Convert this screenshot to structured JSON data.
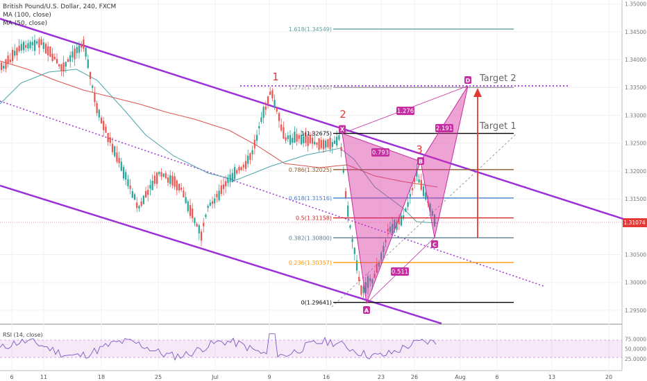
{
  "chart_data": {
    "type": "candlestick",
    "title": "British Pound/U.S. Dollar, 240, FXCM",
    "indicators": [
      "MA (100, close)",
      "MA (50, close)"
    ],
    "last_price": "1.31074",
    "y_ticks": [
      "1.35000",
      "1.34500",
      "1.34000",
      "1.33500",
      "1.33000",
      "1.32500",
      "1.32000",
      "1.31500",
      "1.30500",
      "1.30000",
      "1.29500"
    ],
    "x_ticks": [
      "6",
      "11",
      "18",
      "25",
      "Jul",
      "9",
      "16",
      "23",
      "26",
      "Aug",
      "6",
      "13",
      "20"
    ],
    "fib_levels": [
      {
        "label": "1.618(1.34549)",
        "value": 1.34549,
        "color": "#5f9ea0"
      },
      {
        "label": "1.272(1.33500)",
        "value": 1.335,
        "color": "#a0a0a0"
      },
      {
        "label": "1(1.32675)",
        "value": 1.32675,
        "color": "#000000"
      },
      {
        "label": "0.786(1.32025)",
        "value": 1.32025,
        "color": "#8b5a2b"
      },
      {
        "label": "0.618(1.31516)",
        "value": 1.31516,
        "color": "#4a7fd4"
      },
      {
        "label": "0.5(1.31158)",
        "value": 1.31158,
        "color": "#d22222"
      },
      {
        "label": "0.382(1.30800)",
        "value": 1.308,
        "color": "#607d8b"
      },
      {
        "label": "0.236(1.30357)",
        "value": 1.30357,
        "color": "#ff9800"
      },
      {
        "label": "0(1.29641)",
        "value": 1.29641,
        "color": "#000000"
      }
    ],
    "harmonic_points": [
      {
        "name": "X",
        "value": 1.32675
      },
      {
        "name": "A",
        "value": 1.29641
      },
      {
        "name": "B",
        "value": 1.3205
      },
      {
        "name": "C",
        "value": 1.3085
      },
      {
        "name": "D",
        "value": 1.335
      }
    ],
    "ratios": [
      "1.276",
      "0.793",
      "2.191",
      "0.511"
    ],
    "wave_labels": [
      "1",
      "2",
      "3"
    ],
    "targets": [
      "Target 2",
      "Target 1"
    ],
    "rsi": {
      "label": "RSI (14, close)",
      "ticks": [
        "75.0000",
        "50.0000",
        "25.0000"
      ],
      "ylim": [
        0,
        100
      ]
    },
    "ylim": [
      1.2925,
      1.3507
    ]
  }
}
